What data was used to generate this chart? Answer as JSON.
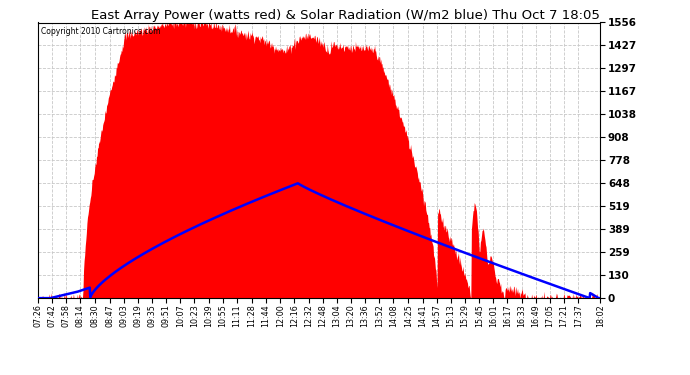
{
  "title": "East Array Power (watts red) & Solar Radiation (W/m2 blue) Thu Oct 7 18:05",
  "copyright": "Copyright 2010 Cartronics.com",
  "background_color": "#ffffff",
  "plot_bg_color": "#ffffff",
  "y_ticks": [
    0.0,
    129.7,
    259.4,
    389.1,
    518.8,
    648.5,
    778.2,
    907.9,
    1037.6,
    1167.3,
    1297.0,
    1426.7,
    1556.4
  ],
  "ymax": 1556.4,
  "ymin": 0.0,
  "x_tick_labels": [
    "07:26",
    "07:42",
    "07:58",
    "08:14",
    "08:30",
    "08:47",
    "09:03",
    "09:19",
    "09:35",
    "09:51",
    "10:07",
    "10:23",
    "10:39",
    "10:55",
    "11:11",
    "11:28",
    "11:44",
    "12:00",
    "12:16",
    "12:32",
    "12:48",
    "13:04",
    "13:20",
    "13:36",
    "13:52",
    "14:08",
    "14:25",
    "14:41",
    "14:57",
    "15:13",
    "15:29",
    "15:45",
    "16:01",
    "16:17",
    "16:33",
    "16:49",
    "17:05",
    "17:21",
    "17:37",
    "18:02"
  ],
  "red_fill_color": "#ff0000",
  "blue_line_color": "#0000ff",
  "grid_color": "#c8c8c8",
  "title_fontsize": 9.5,
  "axis_label_fontsize": 7.5
}
